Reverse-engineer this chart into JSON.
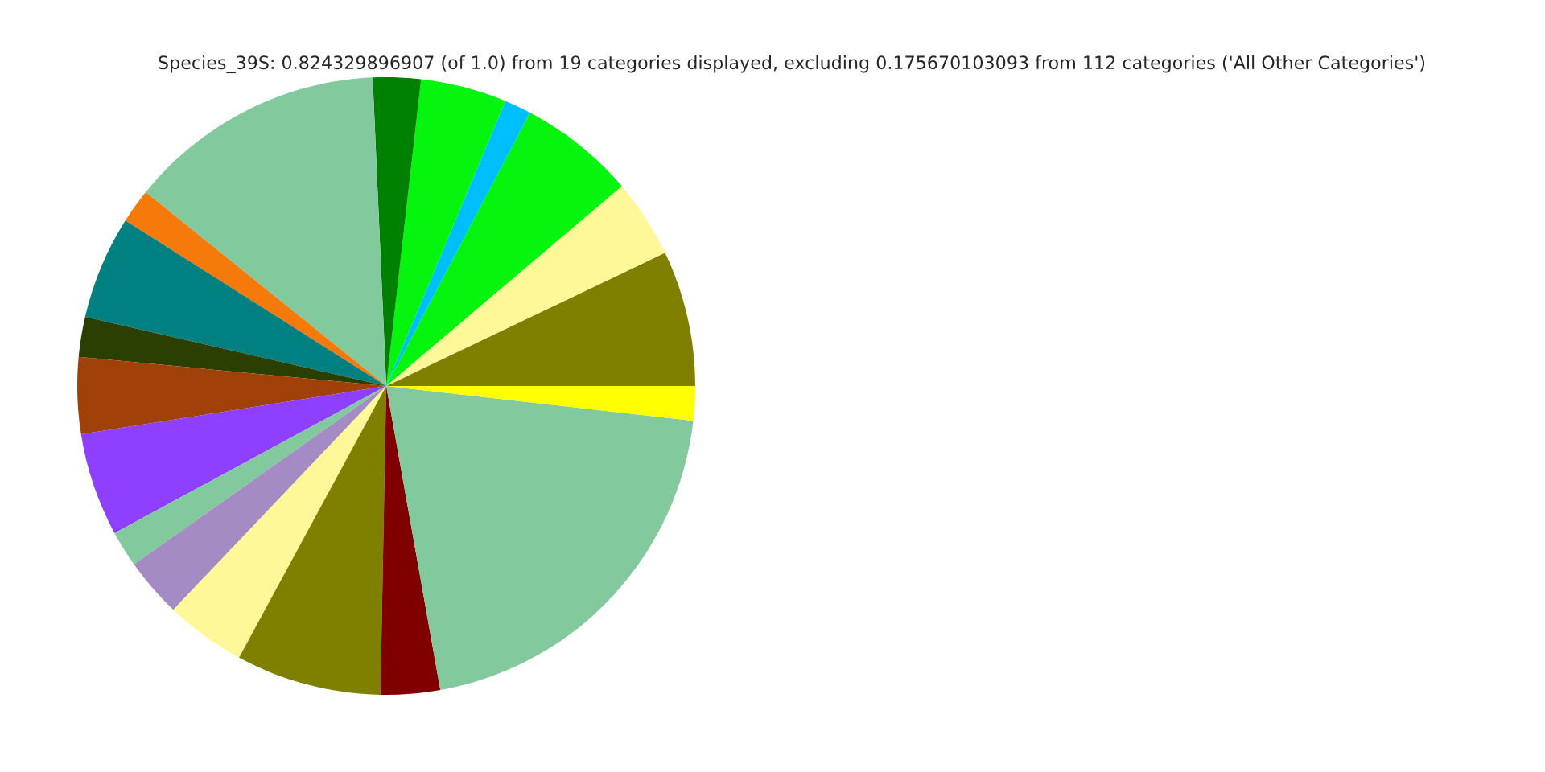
{
  "chart_data": {
    "type": "pie",
    "title": "Species_39S: 0.824329896907 (of 1.0) from 19 categories displayed, excluding 0.175670103093 from 112 categories ('All Other Categories')",
    "categories": [
      null,
      null,
      null,
      null,
      null,
      null,
      null,
      null,
      null,
      null,
      null,
      null,
      null,
      null,
      null,
      null,
      null,
      null,
      null
    ],
    "values": [
      7.1,
      4.1,
      6.1,
      1.4,
      4.5,
      2.5,
      13.5,
      1.8,
      5.4,
      2.1,
      4.0,
      5.4,
      1.9,
      3.1,
      4.2,
      7.6,
      3.1,
      20.4,
      1.8
    ],
    "colors": [
      "#808000",
      "#fff899",
      "#05f50f",
      "#00bfff",
      "#05f50f",
      "#008000",
      "#82ca9d",
      "#f57a0a",
      "#008080",
      "#2b3f00",
      "#a0410a",
      "#8f3fff",
      "#82ca9d",
      "#a48bc3",
      "#fff899",
      "#808000",
      "#800000",
      "#82ca9d",
      "#ffff00"
    ]
  }
}
